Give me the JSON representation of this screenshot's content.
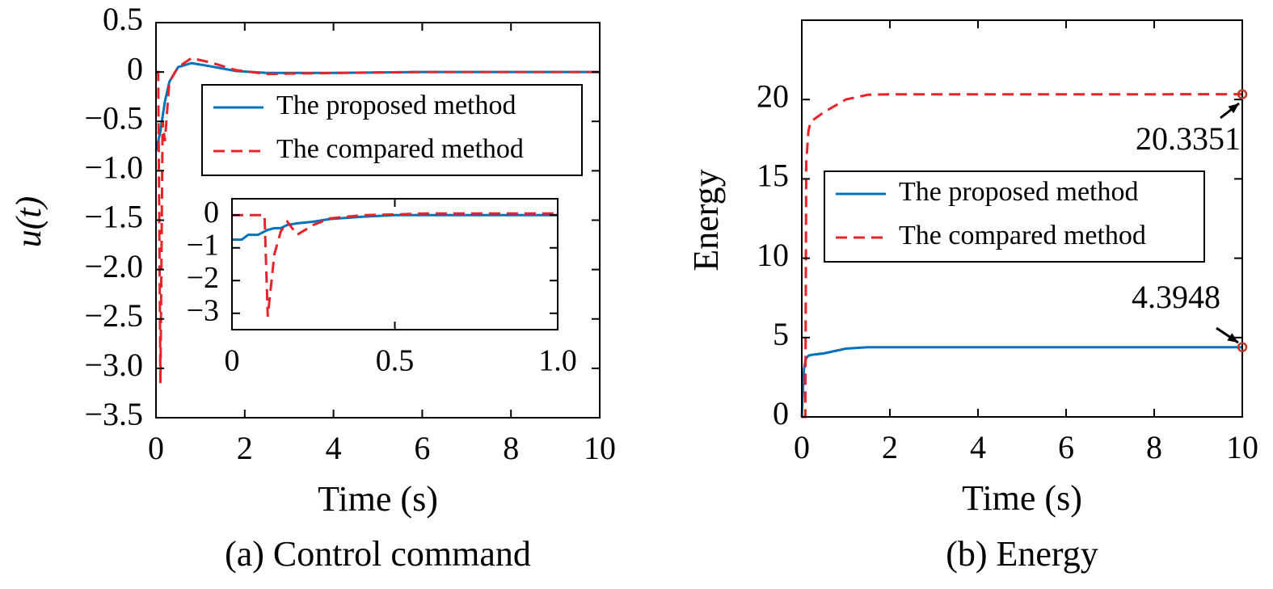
{
  "chart_data": [
    {
      "type": "line",
      "caption": "(a) Control command",
      "xlabel": "Time (s)",
      "ylabel": "u(t)",
      "x": [
        0,
        0.05,
        0.1,
        0.15,
        0.2,
        0.3,
        0.5,
        0.8,
        1.2,
        1.8,
        2.5,
        4,
        6,
        10
      ],
      "series": [
        {
          "name": "The proposed method",
          "color": "#0072bd",
          "dash": false,
          "values": [
            -0.8,
            -0.7,
            -0.6,
            -0.45,
            -0.3,
            -0.1,
            0.05,
            0.09,
            0.06,
            0.01,
            -0.01,
            -0.01,
            0,
            0
          ]
        },
        {
          "name": "The compared method",
          "color": "#e8232a",
          "dash": true,
          "values": [
            0,
            0,
            -3.15,
            -0.5,
            -0.7,
            -0.1,
            0.05,
            0.14,
            0.1,
            0.02,
            -0.02,
            -0.01,
            0,
            0
          ]
        }
      ],
      "xlim": [
        0,
        10
      ],
      "xticks": [
        0,
        2,
        4,
        6,
        8,
        10
      ],
      "ylim": [
        -3.5,
        0.5
      ],
      "yticks": [
        {
          "value": -3.5,
          "label": "−3.5"
        },
        {
          "value": -3,
          "label": "−3.0"
        },
        {
          "value": -2.5,
          "label": "−2.5"
        },
        {
          "value": -2,
          "label": "−2.0"
        },
        {
          "value": -1.5,
          "label": "−1.5"
        },
        {
          "value": -1,
          "label": "−1.0"
        },
        {
          "value": -0.5,
          "label": "−0.5"
        },
        0,
        0.5
      ],
      "legend": "upper right"
    },
    {
      "type": "line",
      "x": [
        0,
        0.03,
        0.05,
        0.08,
        0.1,
        0.11,
        0.13,
        0.15,
        0.17,
        0.2,
        0.25,
        0.3,
        0.4,
        0.5,
        0.6,
        0.8,
        1
      ],
      "series": [
        {
          "color": "#0072bd",
          "dash": false,
          "values": [
            -0.75,
            -0.75,
            -0.6,
            -0.6,
            -0.5,
            -0.45,
            -0.4,
            -0.4,
            -0.3,
            -0.25,
            -0.2,
            -0.12,
            -0.05,
            0,
            0,
            0,
            0
          ]
        },
        {
          "color": "#e8232a",
          "dash": true,
          "values": [
            0,
            0,
            0,
            0,
            0,
            -3.1,
            -1.2,
            -0.5,
            -0.2,
            -0.6,
            -0.3,
            -0.1,
            0,
            0.02,
            0.05,
            0.05,
            0.05
          ]
        }
      ],
      "xlim": [
        0,
        1
      ],
      "xticks": [
        0,
        0.5,
        {
          "value": 1,
          "label": "1.0"
        }
      ],
      "ylim": [
        -3.5,
        0.5
      ],
      "yticks": [
        {
          "value": -3,
          "label": "−3"
        },
        {
          "value": -2,
          "label": "−2"
        },
        {
          "value": -1,
          "label": "−1"
        },
        0
      ]
    },
    {
      "type": "line",
      "caption": "(b) Energy",
      "xlabel": "Time (s)",
      "ylabel": "Energy",
      "x": [
        0,
        0.05,
        0.08,
        0.1,
        0.15,
        0.2,
        0.5,
        1,
        1.5,
        2,
        4,
        6,
        8,
        10
      ],
      "series": [
        {
          "name": "The proposed method",
          "color": "#0072bd",
          "dash": false,
          "values": [
            0,
            3.0,
            3.5,
            3.7,
            3.85,
            3.9,
            4.0,
            4.3,
            4.39,
            4.39,
            4.39,
            4.39,
            4.39,
            4.3948
          ]
        },
        {
          "name": "The compared method",
          "color": "#e8232a",
          "dash": true,
          "values": [
            0,
            0,
            0,
            16,
            18,
            18.6,
            19.2,
            20,
            20.3,
            20.33,
            20.33,
            20.33,
            20.33,
            20.3351
          ]
        }
      ],
      "xlim": [
        0,
        10
      ],
      "xticks": [
        0,
        2,
        4,
        6,
        8,
        10
      ],
      "ylim": [
        0,
        25
      ],
      "yticks": [
        0,
        5,
        10,
        15,
        20
      ],
      "legend": "center left",
      "end_markers": true,
      "annotations": [
        "20.3351",
        "4.3948"
      ]
    }
  ]
}
